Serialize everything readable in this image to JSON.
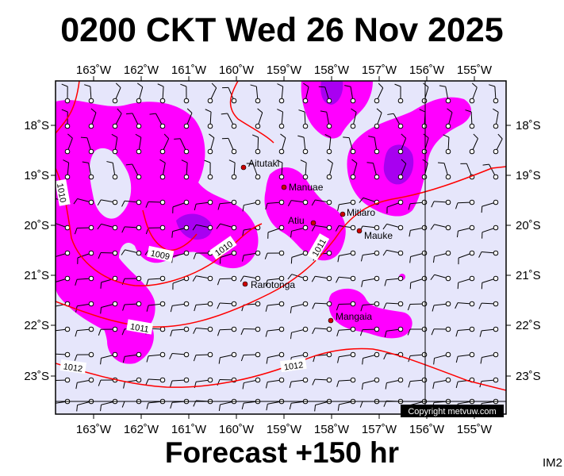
{
  "title": "0200 CKT Wed 26 Nov 2025",
  "footer": "Forecast +150 hr",
  "corner_tag": "IM2",
  "copyright": "Copyright metvuw.com",
  "colors": {
    "background": "#e6e6fb",
    "rain_light": "#ff00ff",
    "rain_heavy": "#9a00ee",
    "isobar": "#ff0000",
    "place_dot": "#cc0000",
    "frame": "#000000"
  },
  "lon_labels": [
    "163˚W",
    "162˚W",
    "161˚W",
    "160˚W",
    "159˚W",
    "158˚W",
    "157˚W",
    "156˚W",
    "155˚W"
  ],
  "lat_labels": [
    "18˚S",
    "19˚S",
    "20˚S",
    "21˚S",
    "22˚S",
    "23˚S"
  ],
  "places": [
    {
      "name": "Aitutaki"
    },
    {
      "name": "Manuae"
    },
    {
      "name": "Mitiaro"
    },
    {
      "name": "Atiu"
    },
    {
      "name": "Mauke"
    },
    {
      "name": "Rarotonga"
    },
    {
      "name": "Mangaia"
    }
  ],
  "isobars": [
    "1009",
    "1010",
    "1010",
    "1011",
    "1011",
    "1012",
    "1012"
  ]
}
